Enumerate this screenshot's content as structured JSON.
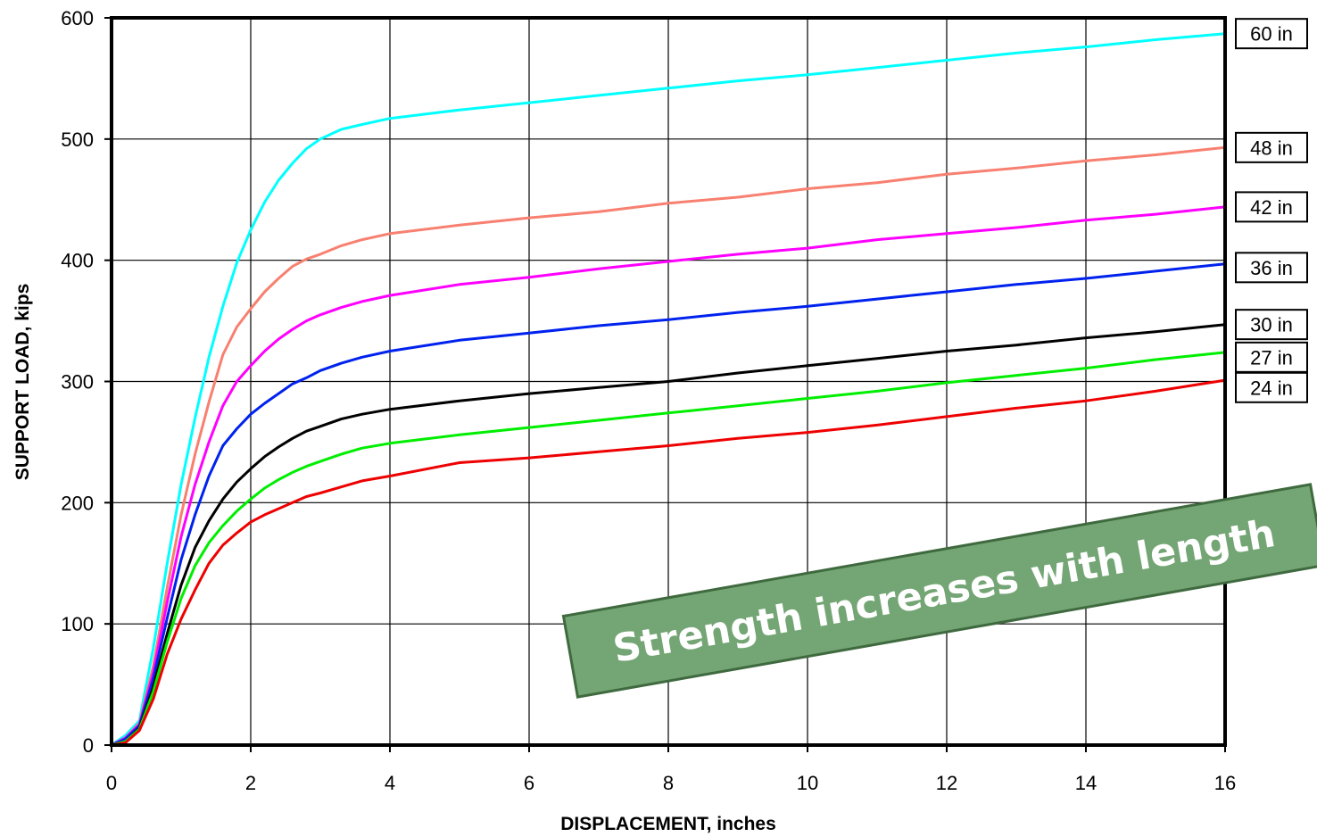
{
  "chart_data": {
    "type": "line",
    "title": "",
    "xlabel": "DISPLACEMENT, inches",
    "ylabel": "SUPPORT LOAD, kips",
    "xlim": [
      0,
      16
    ],
    "ylim": [
      0,
      600
    ],
    "xticks": [
      0,
      2,
      4,
      6,
      8,
      10,
      12,
      14,
      16
    ],
    "yticks": [
      0,
      100,
      200,
      300,
      400,
      500,
      600
    ],
    "grid": true,
    "legend_placement": "right",
    "annotation": "Strength increases with length",
    "series": [
      {
        "name": "60 in",
        "color": "#00ffff",
        "x": [
          0,
          0.2,
          0.4,
          0.6,
          0.8,
          1.0,
          1.2,
          1.4,
          1.6,
          1.8,
          2.0,
          2.2,
          2.4,
          2.6,
          2.8,
          3.0,
          3.3,
          3.6,
          4.0,
          5.0,
          6.0,
          7.0,
          8.0,
          9.0,
          10.0,
          11.0,
          12.0,
          13.0,
          14.0,
          15.0,
          16.0
        ],
        "y": [
          0,
          8,
          20,
          80,
          150,
          215,
          270,
          320,
          362,
          398,
          425,
          448,
          466,
          480,
          492,
          500,
          508,
          512,
          517,
          524,
          530,
          536,
          542,
          548,
          553,
          559,
          565,
          571,
          576,
          582,
          587
        ]
      },
      {
        "name": "48 in",
        "color": "#f88070",
        "x": [
          0,
          0.2,
          0.4,
          0.6,
          0.8,
          1.0,
          1.2,
          1.4,
          1.6,
          1.8,
          2.0,
          2.2,
          2.4,
          2.6,
          2.8,
          3.0,
          3.3,
          3.6,
          4.0,
          5.0,
          6.0,
          7.0,
          8.0,
          9.0,
          10.0,
          11.0,
          12.0,
          13.0,
          14.0,
          15.0,
          16.0
        ],
        "y": [
          0,
          6,
          18,
          65,
          130,
          190,
          240,
          283,
          322,
          345,
          360,
          374,
          385,
          395,
          401,
          405,
          412,
          417,
          422,
          429,
          435,
          440,
          447,
          452,
          459,
          464,
          471,
          476,
          482,
          487,
          493
        ]
      },
      {
        "name": "42 in",
        "color": "#ff00ff",
        "x": [
          0,
          0.2,
          0.4,
          0.6,
          0.8,
          1.0,
          1.2,
          1.4,
          1.6,
          1.8,
          2.0,
          2.2,
          2.4,
          2.6,
          2.8,
          3.0,
          3.3,
          3.6,
          4.0,
          5.0,
          6.0,
          7.0,
          8.0,
          9.0,
          10.0,
          11.0,
          12.0,
          13.0,
          14.0,
          15.0,
          16.0
        ],
        "y": [
          0,
          6,
          17,
          60,
          118,
          172,
          215,
          250,
          280,
          300,
          313,
          325,
          335,
          343,
          350,
          355,
          361,
          366,
          371,
          380,
          386,
          393,
          399,
          405,
          410,
          417,
          422,
          427,
          433,
          438,
          444
        ]
      },
      {
        "name": "36 in",
        "color": "#0022ee",
        "x": [
          0,
          0.2,
          0.4,
          0.6,
          0.8,
          1.0,
          1.2,
          1.4,
          1.6,
          1.8,
          2.0,
          2.2,
          2.4,
          2.6,
          2.8,
          3.0,
          3.3,
          3.6,
          4.0,
          5.0,
          6.0,
          7.0,
          8.0,
          9.0,
          10.0,
          11.0,
          12.0,
          13.0,
          14.0,
          15.0,
          16.0
        ],
        "y": [
          0,
          5,
          16,
          55,
          105,
          153,
          190,
          222,
          247,
          261,
          273,
          282,
          290,
          298,
          303,
          309,
          315,
          320,
          325,
          334,
          340,
          346,
          351,
          357,
          362,
          368,
          374,
          380,
          385,
          391,
          397
        ]
      },
      {
        "name": "30 in",
        "color": "#000000",
        "x": [
          0,
          0.2,
          0.4,
          0.6,
          0.8,
          1.0,
          1.2,
          1.4,
          1.6,
          1.8,
          2.0,
          2.2,
          2.4,
          2.6,
          2.8,
          3.0,
          3.3,
          3.6,
          4.0,
          5.0,
          6.0,
          7.0,
          8.0,
          9.0,
          10.0,
          11.0,
          12.0,
          13.0,
          14.0,
          15.0,
          16.0
        ],
        "y": [
          0,
          3,
          14,
          48,
          92,
          132,
          163,
          185,
          203,
          217,
          228,
          238,
          246,
          253,
          259,
          263,
          269,
          273,
          277,
          284,
          290,
          295,
          300,
          307,
          313,
          319,
          325,
          330,
          336,
          341,
          347
        ]
      },
      {
        "name": "27 in",
        "color": "#00ee00",
        "x": [
          0,
          0.2,
          0.4,
          0.6,
          0.8,
          1.0,
          1.2,
          1.4,
          1.6,
          1.8,
          2.0,
          2.2,
          2.4,
          2.6,
          2.8,
          3.0,
          3.3,
          3.6,
          4.0,
          5.0,
          6.0,
          7.0,
          8.0,
          9.0,
          10.0,
          11.0,
          12.0,
          13.0,
          14.0,
          15.0,
          16.0
        ],
        "y": [
          0,
          3,
          13,
          44,
          85,
          121,
          148,
          167,
          181,
          193,
          203,
          212,
          219,
          225,
          230,
          234,
          240,
          245,
          249,
          256,
          262,
          268,
          274,
          280,
          286,
          292,
          299,
          305,
          311,
          318,
          324
        ]
      },
      {
        "name": "24 in",
        "color": "#ee0000",
        "x": [
          0,
          0.2,
          0.4,
          0.6,
          0.8,
          1.0,
          1.2,
          1.4,
          1.6,
          1.8,
          2.0,
          2.2,
          2.4,
          2.6,
          2.8,
          3.0,
          3.3,
          3.6,
          4.0,
          5.0,
          6.0,
          7.0,
          8.0,
          9.0,
          10.0,
          11.0,
          12.0,
          13.0,
          14.0,
          15.0,
          16.0
        ],
        "y": [
          0,
          2,
          12,
          38,
          75,
          104,
          128,
          150,
          165,
          175,
          184,
          190,
          195,
          200,
          205,
          208,
          213,
          218,
          222,
          233,
          237,
          242,
          247,
          253,
          258,
          264,
          271,
          278,
          284,
          292,
          301
        ]
      }
    ]
  },
  "legend_label_y": {
    "60 in": 587,
    "48 in": 493,
    "42 in": 444,
    "36 in": 394,
    "30 in": 347,
    "27 in": 320,
    "24 in": 295
  }
}
